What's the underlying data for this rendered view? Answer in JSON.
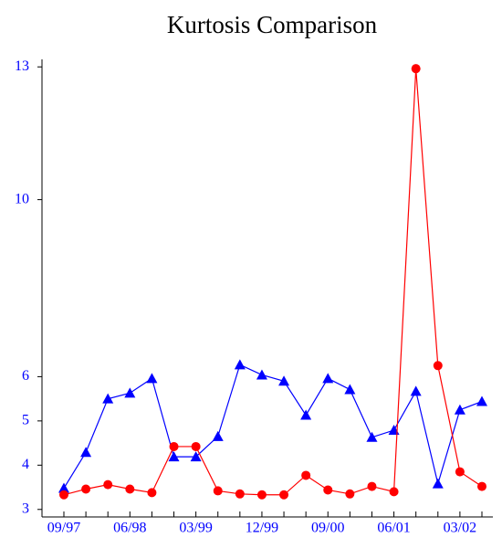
{
  "chart_data": {
    "type": "line",
    "title": "Kurtosis Comparison",
    "categories": [
      "09/97",
      null,
      null,
      "06/98",
      null,
      null,
      "03/99",
      null,
      null,
      "12/99",
      null,
      null,
      "09/00",
      null,
      null,
      "06/01",
      null,
      null,
      "03/02",
      null
    ],
    "series": [
      {
        "color": "#0000ff",
        "marker": "triangle",
        "values": [
          3.48,
          4.29,
          5.5,
          5.63,
          5.96,
          4.19,
          4.19,
          4.65,
          6.27,
          6.04,
          5.9,
          5.13,
          5.96,
          5.71,
          4.63,
          4.79,
          5.67,
          3.58,
          5.25,
          5.44
        ]
      },
      {
        "color": "#ff0000",
        "marker": "circle",
        "values": [
          3.33,
          3.46,
          3.56,
          3.46,
          3.38,
          4.42,
          4.42,
          3.42,
          3.35,
          3.33,
          3.33,
          3.77,
          3.44,
          3.35,
          3.52,
          3.4,
          12.96,
          6.25,
          3.85,
          3.52
        ]
      }
    ],
    "ylim": [
      2.83,
      13.17
    ],
    "yticks": [
      3,
      4,
      5,
      6,
      10,
      13
    ],
    "tick_color": "#0000ff"
  }
}
